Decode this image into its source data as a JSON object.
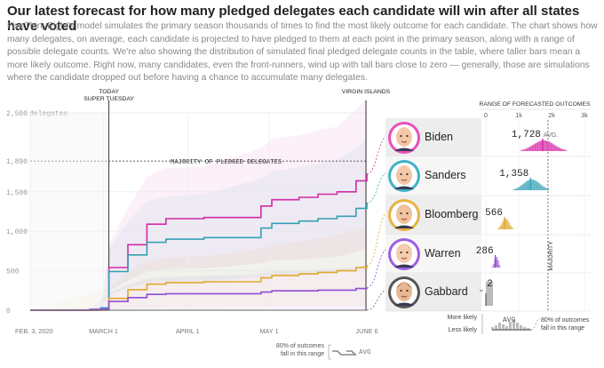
{
  "header": {
    "title": "Our latest forecast for how many pledged delegates each candidate will win after all states have voted",
    "description": "FiveThirtyEight's model simulates the primary season thousands of times to find the most likely outcome for each candidate. The chart shows how many delegates, on average, each candidate is projected to have pledged to them at each point in the primary season, along with a range of possible delegate counts. We're also showing the distribution of simulated final pledged delegate counts in the table, where taller bars mean a more likely outcome. Right now, many candidates, even the front-runners, wind up with tall bars close to zero — generally, those are simulations where the candidate dropped out before having a chance to accumulate many delegates."
  },
  "chart_data": {
    "type": "line",
    "y_axis": {
      "ticks": [
        "2,500",
        "1,890",
        "1,500",
        "1,000",
        "500",
        "0"
      ],
      "tick_values": [
        2500,
        1890,
        1500,
        1000,
        500,
        0
      ],
      "label": "delegates",
      "ylim": [
        0,
        2500
      ]
    },
    "x_axis": {
      "ticks": [
        "FEB. 3, 2020",
        "MARCH 1",
        "APRIL 1",
        "MAY 1",
        "JUNE 6"
      ],
      "tick_dates": [
        "2020-02-03",
        "2020-03-01",
        "2020-04-01",
        "2020-05-01",
        "2020-06-06"
      ]
    },
    "majority_label": "MAJORITY OF PLEDGED DELEGATES",
    "majority_value": 1890,
    "events": [
      {
        "label_lines": [
          "TODAY",
          "SUPER TUESDAY"
        ],
        "date": "2020-03-03"
      },
      {
        "label_lines": [
          "VIRGIN ISLANDS"
        ],
        "date": "2020-06-06"
      }
    ],
    "series": [
      {
        "name": "Biden",
        "color": "#d52aa5",
        "final_value": 1728,
        "steps": [
          [
            "2020-02-03",
            0
          ],
          [
            "2020-02-29",
            20
          ],
          [
            "2020-03-03",
            540
          ],
          [
            "2020-03-10",
            830
          ],
          [
            "2020-03-17",
            1090
          ],
          [
            "2020-03-24",
            1160
          ],
          [
            "2020-04-07",
            1175
          ],
          [
            "2020-04-28",
            1320
          ],
          [
            "2020-05-02",
            1400
          ],
          [
            "2020-05-12",
            1430
          ],
          [
            "2020-05-19",
            1470
          ],
          [
            "2020-05-26",
            1500
          ],
          [
            "2020-06-02",
            1640
          ],
          [
            "2020-06-06",
            1728
          ]
        ]
      },
      {
        "name": "Sanders",
        "color": "#35a0b4",
        "final_value": 1358,
        "steps": [
          [
            "2020-02-03",
            0
          ],
          [
            "2020-02-29",
            30
          ],
          [
            "2020-03-03",
            490
          ],
          [
            "2020-03-10",
            700
          ],
          [
            "2020-03-17",
            860
          ],
          [
            "2020-03-24",
            900
          ],
          [
            "2020-04-07",
            920
          ],
          [
            "2020-04-28",
            1040
          ],
          [
            "2020-05-02",
            1100
          ],
          [
            "2020-05-12",
            1130
          ],
          [
            "2020-05-19",
            1160
          ],
          [
            "2020-05-26",
            1190
          ],
          [
            "2020-06-02",
            1290
          ],
          [
            "2020-06-06",
            1358
          ]
        ]
      },
      {
        "name": "Bloomberg",
        "color": "#e0a82e",
        "final_value": 566,
        "steps": [
          [
            "2020-02-03",
            0
          ],
          [
            "2020-03-03",
            150
          ],
          [
            "2020-03-10",
            260
          ],
          [
            "2020-03-17",
            330
          ],
          [
            "2020-03-24",
            350
          ],
          [
            "2020-04-07",
            360
          ],
          [
            "2020-04-28",
            410
          ],
          [
            "2020-05-02",
            440
          ],
          [
            "2020-05-12",
            460
          ],
          [
            "2020-05-19",
            480
          ],
          [
            "2020-05-26",
            500
          ],
          [
            "2020-06-02",
            540
          ],
          [
            "2020-06-06",
            566
          ]
        ]
      },
      {
        "name": "Warren",
        "color": "#8e4fd4",
        "final_value": 286,
        "steps": [
          [
            "2020-02-03",
            0
          ],
          [
            "2020-02-25",
            10
          ],
          [
            "2020-03-03",
            110
          ],
          [
            "2020-03-10",
            160
          ],
          [
            "2020-03-17",
            200
          ],
          [
            "2020-03-24",
            210
          ],
          [
            "2020-04-28",
            230
          ],
          [
            "2020-05-02",
            245
          ],
          [
            "2020-05-19",
            255
          ],
          [
            "2020-06-02",
            275
          ],
          [
            "2020-06-06",
            286
          ]
        ]
      },
      {
        "name": "Gabbard",
        "color": "#666666",
        "final_value": 2,
        "steps": [
          [
            "2020-02-03",
            0
          ],
          [
            "2020-06-06",
            2
          ]
        ]
      }
    ],
    "footer_legend": {
      "range_label_lines": [
        "80% of outcomes",
        "fall in this range"
      ],
      "avg_label": "AVG"
    }
  },
  "table": {
    "header": "RANGE OF FORECASTED OUTCOMES",
    "ticks": [
      "0",
      "1k",
      "2k",
      "3k"
    ],
    "tick_values": [
      0,
      1000,
      2000,
      3000
    ],
    "majority_label": "MAJORITY",
    "avg_label": "AVG.",
    "rows": [
      {
        "name": "Biden",
        "value": "1,728",
        "show_avg": true,
        "color": "#d52aa5",
        "skin": "#f2c7a5",
        "hair": "#eeeeee",
        "ring": "#e84fbe"
      },
      {
        "name": "Sanders",
        "value": "1,358",
        "show_avg": false,
        "color": "#35a0b4",
        "skin": "#f3c6a8",
        "hair": "#f4f4f4",
        "ring": "#3fb1c5"
      },
      {
        "name": "Bloomberg",
        "value": "566",
        "show_avg": false,
        "color": "#e0a82e",
        "skin": "#f1c29c",
        "hair": "#b9b9b9",
        "ring": "#e7b342"
      },
      {
        "name": "Warren",
        "value": "286",
        "show_avg": false,
        "color": "#8e4fd4",
        "skin": "#f5cdb0",
        "hair": "#d9a46b",
        "ring": "#9a5fe0"
      },
      {
        "name": "Gabbard",
        "value": "2",
        "show_avg": false,
        "color": "#666666",
        "skin": "#e9b893",
        "hair": "#2d2418",
        "ring": "#555555",
        "selector_icon": "chevron-down-icon"
      }
    ],
    "legend": {
      "more_likely": "More likely",
      "less_likely": "Less likely",
      "avg": "AVG",
      "range_lines": [
        "80% of outcomes",
        "fall in this range"
      ]
    }
  }
}
